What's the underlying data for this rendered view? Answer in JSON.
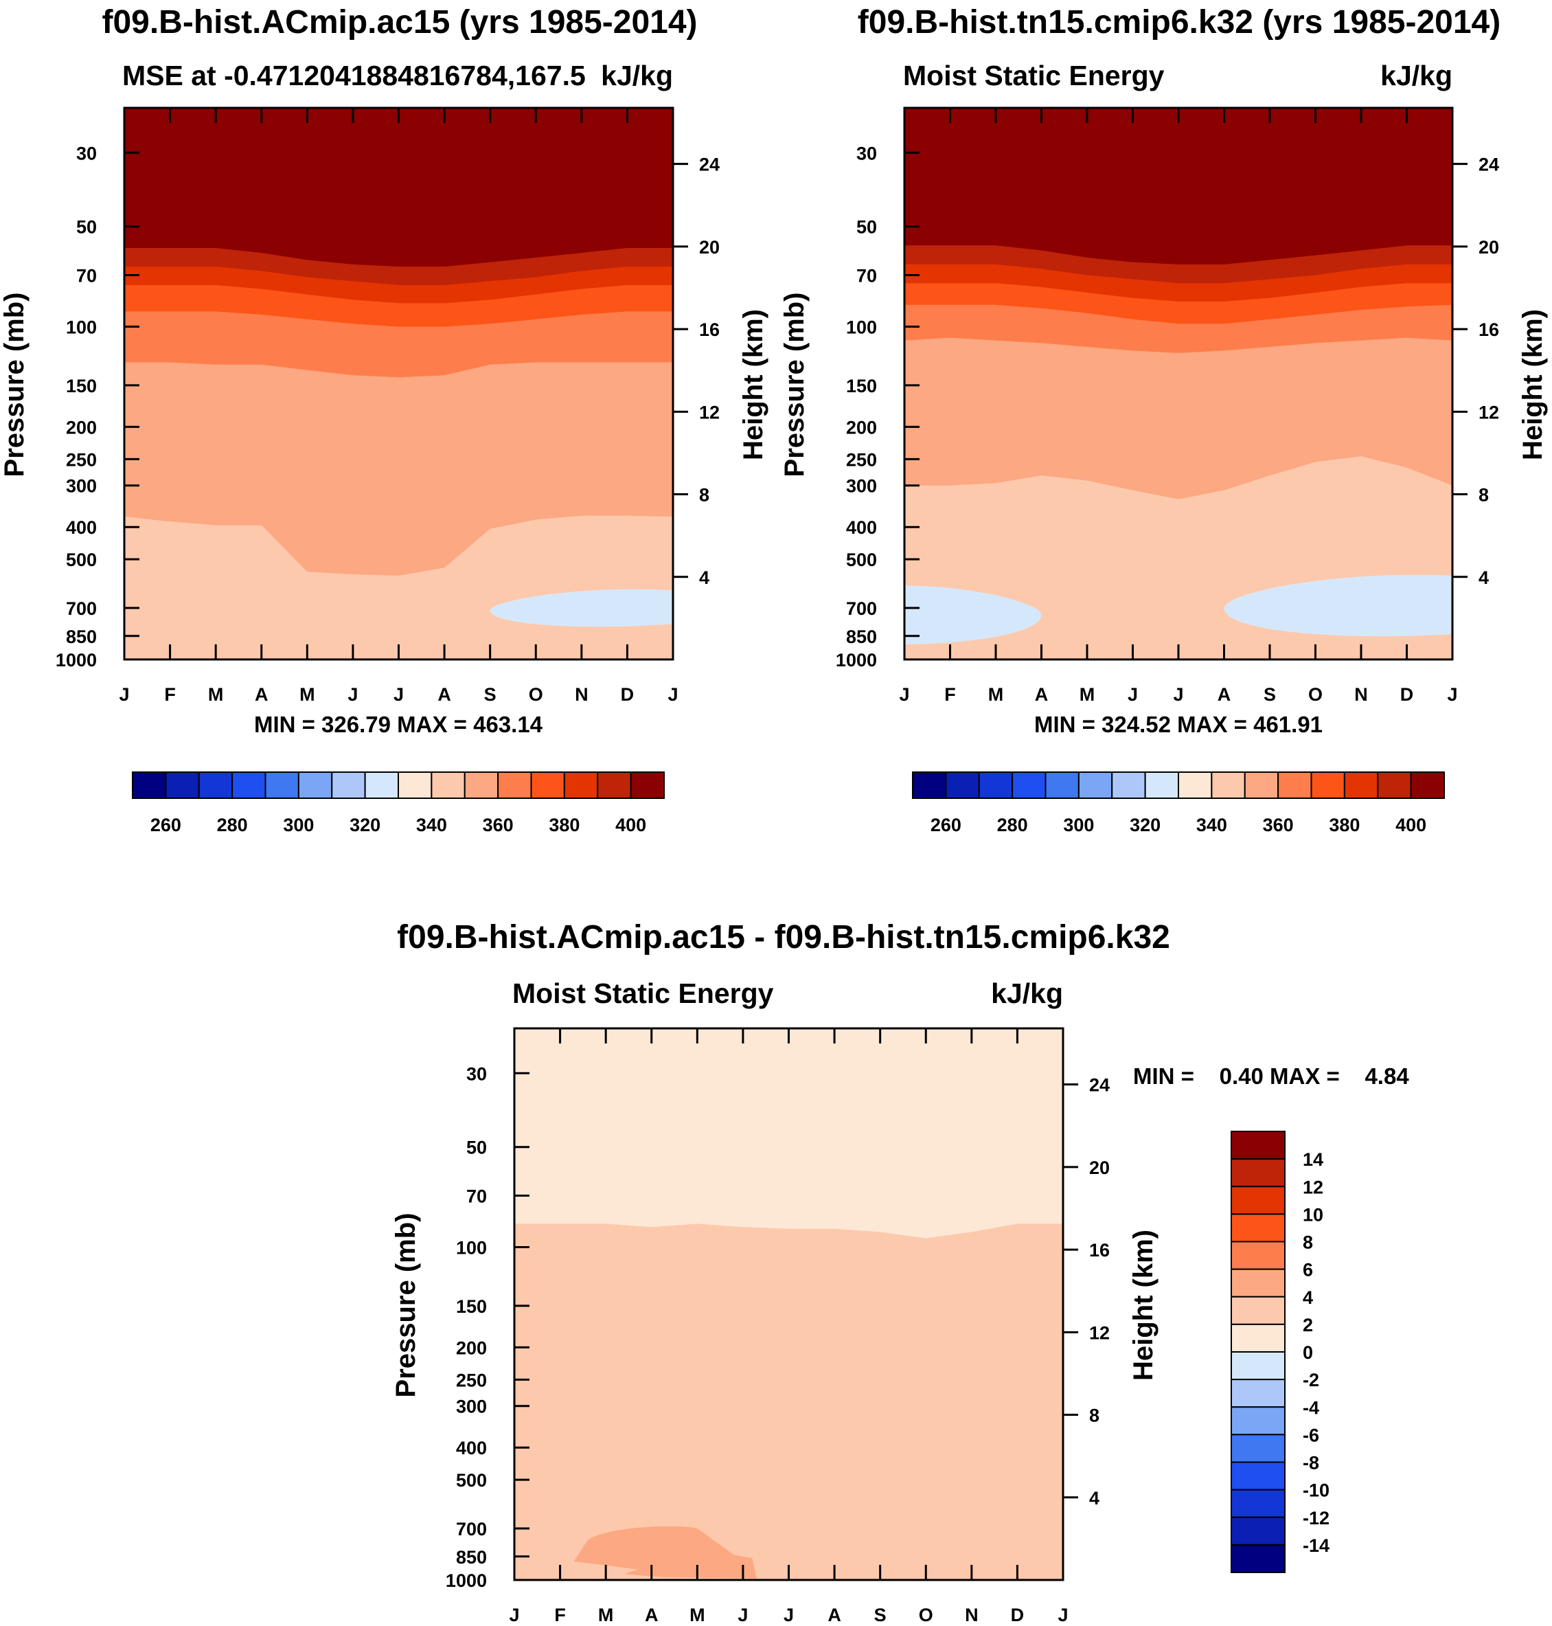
{
  "palette": {
    "blues": [
      "#000080",
      "#0a1fb3",
      "#1336d6",
      "#1f4ff0",
      "#3f78f0",
      "#7aa6f5",
      "#adc8f8",
      "#d5e8fb"
    ],
    "reds": [
      "#fde8d6",
      "#fdc9ad",
      "#fca882",
      "#fd7e4c",
      "#fd5418",
      "#e43402",
      "#bf2409",
      "#8b0000"
    ]
  },
  "chart_data": [
    {
      "type": "heatmap",
      "id": "panel1",
      "title": "f09.B-hist.ACmip.ac15 (yrs 1985-2014)",
      "subtitle_left": "MSE at -0.47120418848167​84,167.5",
      "subtitle_right": "kJ/kg",
      "ylabel": "Pressure (mb)",
      "y2label": "Height (km)",
      "x_ticks": [
        "J",
        "F",
        "M",
        "A",
        "M",
        "J",
        "J",
        "A",
        "S",
        "O",
        "N",
        "D",
        "J"
      ],
      "p_ticks": [
        "30",
        "50",
        "70",
        "100",
        "150",
        "200",
        "250",
        "300",
        "400",
        "500",
        "700",
        "850",
        "1000"
      ],
      "p_values": [
        30,
        50,
        70,
        100,
        150,
        200,
        250,
        300,
        400,
        500,
        700,
        850,
        1000
      ],
      "ylim_mb": [
        1000,
        22
      ],
      "h_ticks": [
        "24",
        "20",
        "16",
        "12",
        "8",
        "4"
      ],
      "h_values_km": [
        24,
        20,
        16,
        12,
        8,
        4
      ],
      "minmax_text": "MIN = 326.79 MAX = 463.14",
      "colorbar_labels": [
        "260",
        "280",
        "300",
        "320",
        "340",
        "360",
        "380",
        "400"
      ],
      "colorbar_orientation": "horizontal",
      "contour_levels_kJkg": [
        250,
        260,
        270,
        280,
        290,
        300,
        310,
        320,
        330,
        340,
        350,
        360,
        370,
        380,
        390,
        400,
        410
      ],
      "regions_mb_by_month": [
        {
          "color_index": 15,
          "bottom": [
            58,
            58,
            58,
            60,
            63,
            65,
            66,
            66,
            64,
            62,
            60,
            58,
            58
          ]
        },
        {
          "color_index": 14,
          "bottom": [
            66,
            66,
            66,
            68,
            71,
            73,
            75,
            75,
            73,
            71,
            68,
            66,
            66
          ]
        },
        {
          "color_index": 13,
          "bottom": [
            75,
            75,
            75,
            77,
            80,
            83,
            85,
            85,
            83,
            80,
            77,
            75,
            75
          ]
        },
        {
          "color_index": 12,
          "bottom": [
            90,
            90,
            90,
            92,
            95,
            98,
            100,
            100,
            98,
            95,
            92,
            90,
            90
          ]
        },
        {
          "color_index": 11,
          "bottom": [
            128,
            128,
            130,
            130,
            135,
            140,
            142,
            140,
            130,
            128,
            128,
            128,
            128
          ]
        },
        {
          "color_index": 10,
          "bottom": [
            372,
            385,
            395,
            395,
            545,
            555,
            560,
            530,
            405,
            380,
            370,
            370,
            372
          ]
        },
        {
          "color_index": 9,
          "bottom": [
            1000,
            1000,
            1000,
            1000,
            1000,
            1000,
            1000,
            1000,
            1000,
            1000,
            1000,
            1000,
            1000
          ]
        }
      ],
      "low_pocket": {
        "color_index": 7,
        "months": [
          8,
          12
        ],
        "pressure_range_mb": [
          620,
          820
        ]
      },
      "surface_band": {
        "color_index": 9,
        "pressure_top_mb": [
          900,
          895,
          890,
          880,
          870,
          860,
          870,
          880,
          895,
          905,
          905,
          905,
          900
        ]
      }
    },
    {
      "type": "heatmap",
      "id": "panel2",
      "title": "f09.B-hist.tn15.cmip6.k32 (yrs 1985-2014)",
      "subtitle_left": "Moist Static Energy",
      "subtitle_right": "kJ/kg",
      "ylabel": "Pressure (mb)",
      "y2label": "Height (km)",
      "x_ticks": [
        "J",
        "F",
        "M",
        "A",
        "M",
        "J",
        "J",
        "A",
        "S",
        "O",
        "N",
        "D",
        "J"
      ],
      "p_ticks": [
        "30",
        "50",
        "70",
        "100",
        "150",
        "200",
        "250",
        "300",
        "400",
        "500",
        "700",
        "850",
        "1000"
      ],
      "p_values": [
        30,
        50,
        70,
        100,
        150,
        200,
        250,
        300,
        400,
        500,
        700,
        850,
        1000
      ],
      "ylim_mb": [
        1000,
        22
      ],
      "h_ticks": [
        "24",
        "20",
        "16",
        "12",
        "8",
        "4"
      ],
      "h_values_km": [
        24,
        20,
        16,
        12,
        8,
        4
      ],
      "minmax_text": "MIN = 324.52 MAX = 461.91",
      "colorbar_labels": [
        "260",
        "280",
        "300",
        "320",
        "340",
        "360",
        "380",
        "400"
      ],
      "colorbar_orientation": "horizontal",
      "contour_levels_kJkg": [
        250,
        260,
        270,
        280,
        290,
        300,
        310,
        320,
        330,
        340,
        350,
        360,
        370,
        380,
        390,
        400,
        410
      ],
      "regions_mb_by_month": [
        {
          "color_index": 15,
          "bottom": [
            57,
            57,
            57,
            59,
            62,
            64,
            65,
            65,
            63,
            61,
            59,
            57,
            57
          ]
        },
        {
          "color_index": 14,
          "bottom": [
            65,
            65,
            65,
            67,
            70,
            72,
            74,
            74,
            72,
            70,
            67,
            65,
            65
          ]
        },
        {
          "color_index": 13,
          "bottom": [
            74,
            74,
            74,
            76,
            79,
            82,
            84,
            84,
            82,
            79,
            76,
            74,
            74
          ]
        },
        {
          "color_index": 12,
          "bottom": [
            86,
            86,
            86,
            88,
            91,
            95,
            98,
            98,
            95,
            92,
            89,
            87,
            86
          ]
        },
        {
          "color_index": 11,
          "bottom": [
            110,
            108,
            110,
            112,
            115,
            118,
            120,
            118,
            115,
            112,
            110,
            108,
            110
          ]
        },
        {
          "color_index": 10,
          "bottom": [
            300,
            300,
            295,
            280,
            290,
            310,
            330,
            310,
            280,
            255,
            245,
            265,
            300
          ]
        },
        {
          "color_index": 9,
          "bottom": [
            1000,
            1000,
            1000,
            1000,
            1000,
            1000,
            1000,
            1000,
            1000,
            1000,
            1000,
            1000,
            1000
          ]
        }
      ],
      "low_pockets": [
        {
          "color_index": 7,
          "months": [
            0,
            3
          ],
          "pressure_range_mb": [
            600,
            900
          ]
        },
        {
          "color_index": 7,
          "months": [
            7,
            12
          ],
          "pressure_range_mb": [
            560,
            880
          ]
        }
      ],
      "surface_band": {
        "color_index": 9,
        "pressure_top_mb": [
          930,
          930,
          928,
          925,
          920,
          920,
          925,
          930,
          935,
          935,
          935,
          935,
          930
        ]
      }
    },
    {
      "type": "heatmap",
      "id": "panel3",
      "title": "f09.B-hist.ACmip.ac15 - f09.B-hist.tn15.cmip6.k32",
      "subtitle_left": "Moist Static Energy",
      "subtitle_right": "kJ/kg",
      "ylabel": "Pressure (mb)",
      "y2label": "Height (km)",
      "x_ticks": [
        "J",
        "F",
        "M",
        "A",
        "M",
        "J",
        "J",
        "A",
        "S",
        "O",
        "N",
        "D",
        "J"
      ],
      "p_ticks": [
        "30",
        "50",
        "70",
        "100",
        "150",
        "200",
        "250",
        "300",
        "400",
        "500",
        "700",
        "850",
        "1000"
      ],
      "p_values": [
        30,
        50,
        70,
        100,
        150,
        200,
        250,
        300,
        400,
        500,
        700,
        850,
        1000
      ],
      "ylim_mb": [
        1000,
        22
      ],
      "h_ticks": [
        "24",
        "20",
        "16",
        "12",
        "8",
        "4"
      ],
      "h_values_km": [
        24,
        20,
        16,
        12,
        8,
        4
      ],
      "minmax_text": "MIN =    0.40 MAX =    4.84",
      "colorbar_labels": [
        "14",
        "12",
        "10",
        "8",
        "6",
        "4",
        "2",
        "0",
        "-2",
        "-4",
        "-6",
        "-8",
        "-10",
        "-12",
        "-14"
      ],
      "colorbar_orientation": "vertical",
      "contour_levels_kJkg": [
        -16,
        -14,
        -12,
        -10,
        -8,
        -6,
        -4,
        -2,
        0,
        2,
        4,
        6,
        8,
        10,
        12,
        14,
        16
      ],
      "regions_mb_by_month": [
        {
          "color_index": 8,
          "bottom": [
            85,
            85,
            85,
            87,
            85,
            87,
            88,
            88,
            90,
            94,
            90,
            85,
            85
          ]
        },
        {
          "color_index": 9,
          "bottom": [
            1000,
            1000,
            1000,
            1000,
            1000,
            1000,
            1000,
            1000,
            1000,
            1000,
            1000,
            1000,
            1000
          ]
        }
      ],
      "warm_pocket": {
        "color_index": 10,
        "month_points": [
          1.3,
          1.6,
          3.0,
          4.0,
          4.8,
          5.2
        ],
        "pressure_range_mb": [
          690,
          990
        ]
      }
    }
  ]
}
